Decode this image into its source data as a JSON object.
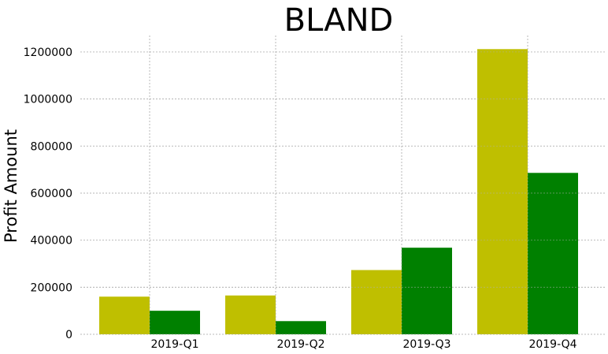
{
  "chart_data": {
    "type": "bar",
    "title": "BLAND",
    "xlabel": "",
    "ylabel": "Profit Amount",
    "categories": [
      "2019-Q1",
      "2019-Q2",
      "2019-Q3",
      "2019-Q4"
    ],
    "series": [
      {
        "values": [
          160000,
          165000,
          273000,
          1212000
        ],
        "color": "#bfbf00"
      },
      {
        "values": [
          100000,
          56000,
          368000,
          686000
        ],
        "color": "#008000"
      }
    ],
    "ylim": [
      0,
      1270000
    ],
    "yticks": [
      0,
      200000,
      400000,
      600000,
      800000,
      1000000,
      1200000
    ],
    "grid": true,
    "legend": "none"
  }
}
